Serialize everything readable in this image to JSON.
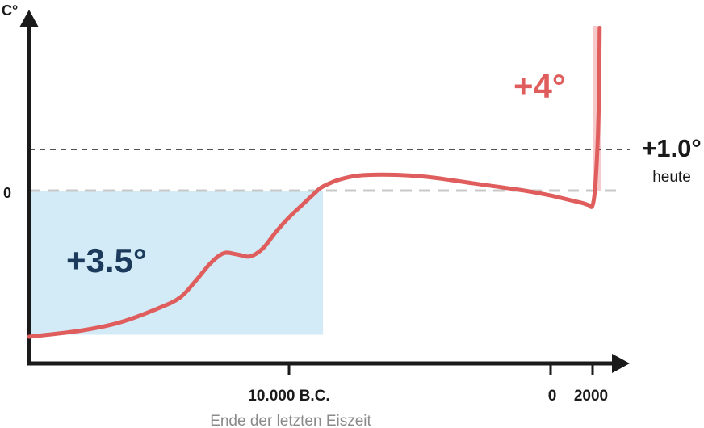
{
  "chart_data": {
    "type": "line",
    "title": "",
    "ylabel": "C°",
    "xlabel": "",
    "y_zero_label": "0",
    "x_ticks": [
      {
        "label": "10.000 B.C.",
        "value": -10000
      },
      {
        "label": "0",
        "value": 0
      },
      {
        "label": "2000",
        "value": 2000
      }
    ],
    "x_annotation": "Ende der letzten Eiszeit",
    "reference_lines": [
      {
        "value": 1.0,
        "label": "+1.0°",
        "sublabel": "heute",
        "style": "dashed-black"
      },
      {
        "value": 0,
        "label": "0",
        "style": "dashed-gray"
      }
    ],
    "regions": [
      {
        "label": "+3.5°",
        "y_from": -3.5,
        "y_to": 0,
        "x_from": -20000,
        "x_to": -8700,
        "color": "#d2ebf6",
        "label_color": "#1b3a5c"
      },
      {
        "label": "+4°",
        "y_from": 0,
        "y_to": 4,
        "x_from": 2000,
        "x_to": 2150,
        "color": "#f5c8ca",
        "label_color": "#e05d5d"
      }
    ],
    "series": [
      {
        "color": "#e05d5d",
        "x": [
          -20000,
          -18000,
          -16500,
          -15000,
          -14200,
          -13600,
          -13000,
          -12500,
          -12000,
          -11500,
          -11000,
          -10500,
          -10000,
          -9500,
          -9000,
          -8700,
          -8000,
          -7000,
          -5000,
          -3000,
          -1000,
          0,
          1000,
          1500,
          1800,
          2000,
          2050,
          2100,
          2120
        ],
        "y": [
          -3.55,
          -3.4,
          -3.2,
          -2.85,
          -2.6,
          -2.2,
          -1.75,
          -1.52,
          -1.55,
          -1.6,
          -1.4,
          -1.0,
          -0.65,
          -0.35,
          -0.05,
          0.1,
          0.28,
          0.38,
          0.35,
          0.18,
          0.0,
          -0.12,
          -0.24,
          -0.3,
          -0.35,
          -0.36,
          0.2,
          1.8,
          3.95
        ]
      }
    ],
    "xlim": [
      -20000,
      2600
    ],
    "ylim": [
      -3.9,
      4.3
    ],
    "colors": {
      "axis": "#1a1a1a",
      "line": "#e05d5d",
      "zero_line": "#c8c8c8",
      "annotation": "#8a8a8a"
    }
  }
}
